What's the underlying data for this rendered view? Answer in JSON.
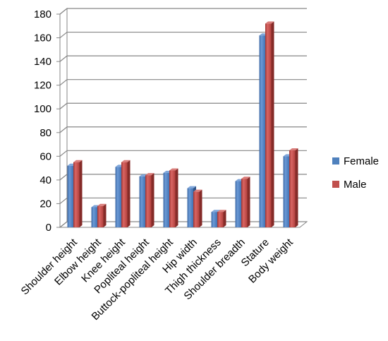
{
  "chart_data": {
    "type": "bar",
    "categories": [
      "Shoulder height",
      "Elbow height",
      "Knee height",
      "Popliteal height",
      "Buttock-popliteal height",
      "Hip width",
      "Thigh thickness",
      "Shoulder breadth",
      "Stature",
      "Body weight"
    ],
    "series": [
      {
        "name": "Female",
        "values": [
          52,
          17,
          51,
          43,
          46,
          33,
          13,
          39,
          162,
          60
        ],
        "color": "#4F81BD"
      },
      {
        "name": "Male",
        "values": [
          55,
          18,
          55,
          44,
          48,
          30,
          13,
          41,
          172,
          65
        ],
        "color": "#C0504D"
      }
    ],
    "yticks": [
      0,
      20,
      40,
      60,
      80,
      100,
      120,
      140,
      160,
      180
    ],
    "ylim": [
      0,
      180
    ],
    "grid": true,
    "legend_position": "right",
    "title": "",
    "xlabel": "",
    "ylabel": ""
  }
}
